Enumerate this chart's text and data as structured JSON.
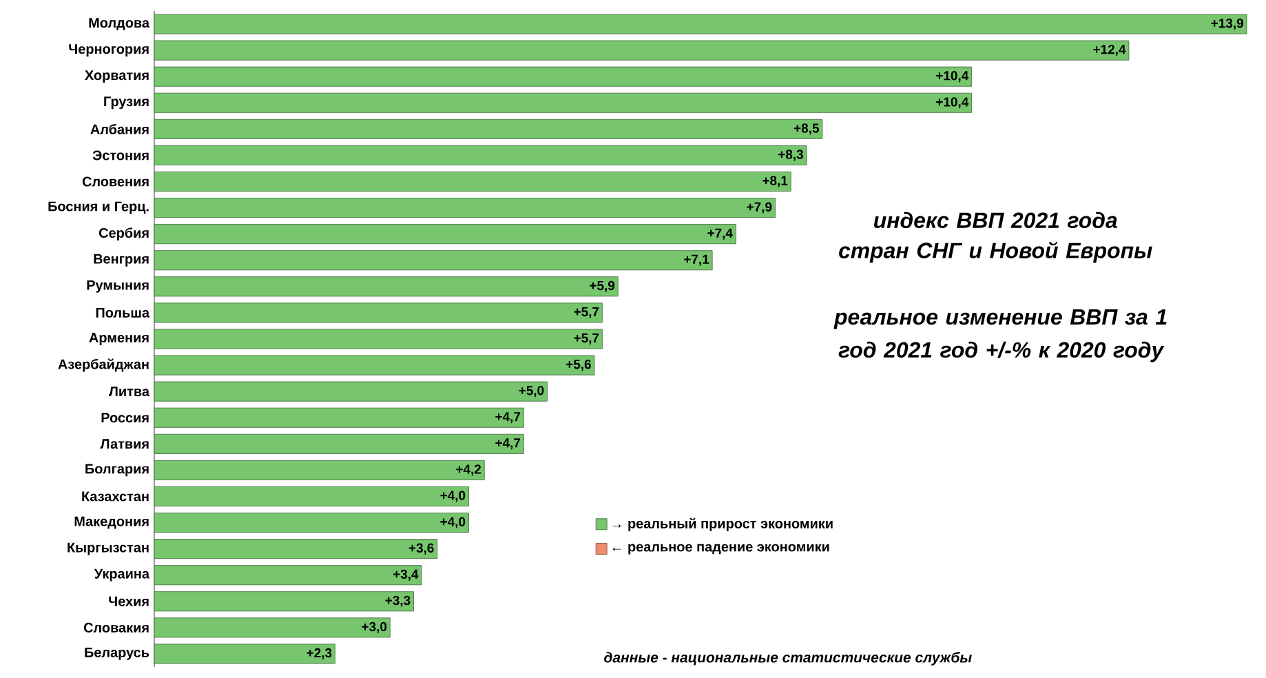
{
  "chart_data": {
    "type": "bar",
    "orientation": "horizontal",
    "title": "индекс ВВП  2021 года стран СНГ и Новой Европы",
    "subtitle": "реальное изменение ВВП  за 1 год 2021 год +/-% к 2020 году",
    "categories": [
      "Молдова",
      "Черногория",
      "Хорватия",
      "Грузия",
      "Албания",
      "Эстония",
      "Словения",
      "Босния и Герц.",
      "Сербия",
      "Венгрия",
      "Румыния",
      "Польша",
      "Армения",
      "Азербайджан",
      "Литва",
      "Россия",
      "Латвия",
      "Болгария",
      "Казахстан",
      "Македония",
      "Кыргызстан",
      "Украина",
      "Чехия",
      "Словакия",
      "Беларусь"
    ],
    "series": [
      {
        "name": "→ реальный прирост экономики",
        "color": "#77c66e",
        "values": [
          13.9,
          12.4,
          10.4,
          10.4,
          8.5,
          8.3,
          8.1,
          7.9,
          7.4,
          7.1,
          5.9,
          5.7,
          5.7,
          5.6,
          5.0,
          4.7,
          4.7,
          4.2,
          4.0,
          4.0,
          3.6,
          3.4,
          3.3,
          3.0,
          2.3
        ],
        "value_labels": [
          "+13,9",
          "+12,4",
          "+10,4",
          "+10,4",
          "+8,5",
          "+8,3",
          "+8,1",
          "+7,9",
          "+7,4",
          "+7,1",
          "+5,9",
          "+5,7",
          "+5,7",
          "+5,6",
          "+5,0",
          "+4,7",
          "+4,7",
          "+4,2",
          "+4,0",
          "+4,0",
          "+3,6",
          "+3,4",
          "+3,3",
          "+3,0",
          "+2,3"
        ]
      },
      {
        "name": "← реальное падение экономики",
        "color": "#f08a6c",
        "values": [
          null,
          null,
          null,
          null,
          null,
          null,
          null,
          null,
          null,
          null,
          null,
          null,
          null,
          null,
          null,
          null,
          null,
          null,
          null,
          null,
          null,
          null,
          null,
          null,
          null
        ]
      }
    ],
    "legend": "right",
    "annotations": [
      "данные - национальные статистические службы"
    ]
  }
}
